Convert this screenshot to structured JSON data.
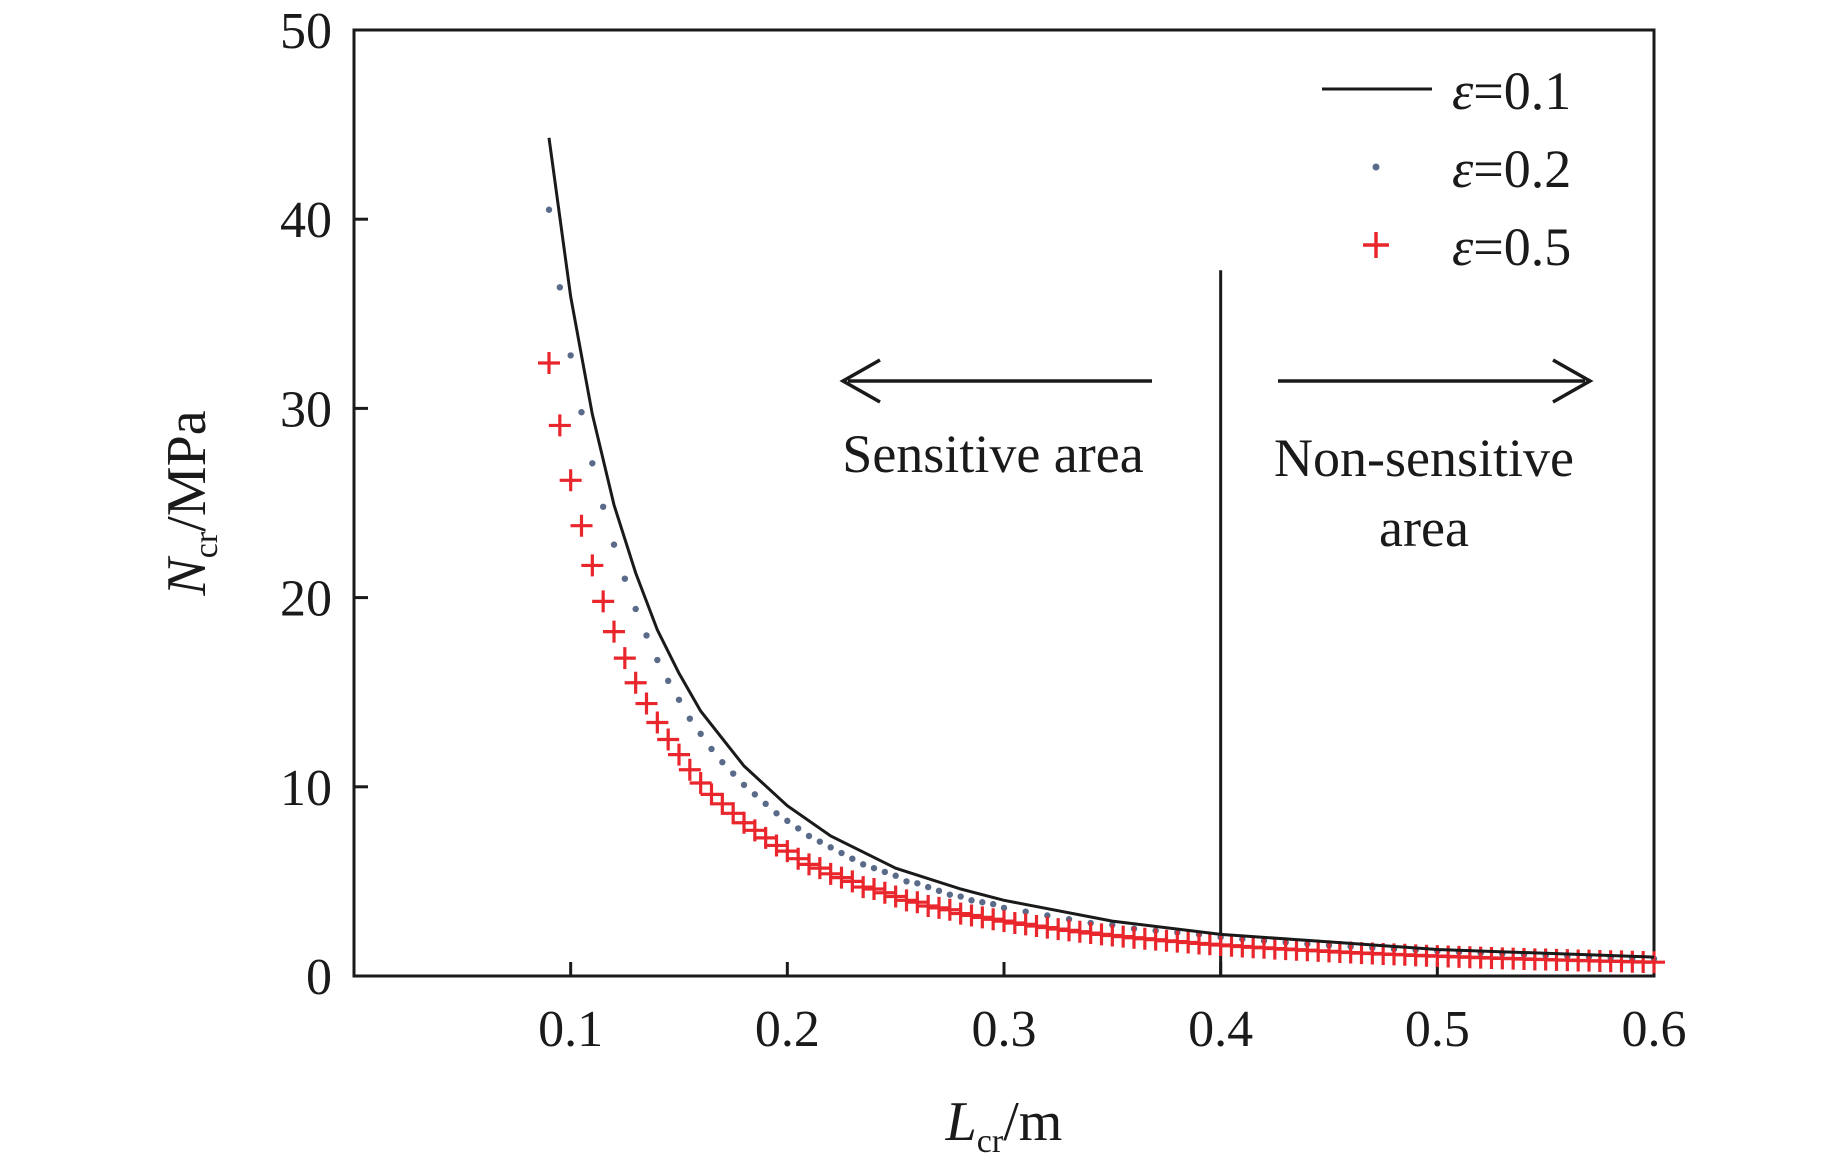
{
  "chart_data": {
    "type": "line",
    "xlabel": {
      "symbol": "L",
      "subscript": "cr",
      "unit": "/m"
    },
    "ylabel": {
      "symbol": "N",
      "subscript": "cr",
      "unit": "/MPa"
    },
    "xlim": [
      0,
      0.6
    ],
    "ylim": [
      0,
      50
    ],
    "xticks": [
      "0.1",
      "0.2",
      "0.3",
      "0.4",
      "0.5",
      "0.6"
    ],
    "yticks": [
      "0",
      "10",
      "20",
      "30",
      "40",
      "50"
    ],
    "grid": false,
    "legend_position": "top-right",
    "series": [
      {
        "name": "ε=0.1",
        "symbol": "ε",
        "value_label": "=0.1",
        "style": "line",
        "color": "#1a1a1a",
        "x": [
          0.09,
          0.1,
          0.11,
          0.12,
          0.13,
          0.14,
          0.15,
          0.16,
          0.18,
          0.2,
          0.22,
          0.25,
          0.28,
          0.3,
          0.35,
          0.4,
          0.45,
          0.5,
          0.55,
          0.6
        ],
        "y": [
          44.3,
          35.9,
          29.7,
          24.9,
          21.3,
          18.3,
          16.0,
          14.0,
          11.1,
          9.0,
          7.4,
          5.7,
          4.6,
          4.0,
          2.9,
          2.2,
          1.8,
          1.4,
          1.2,
          1.0
        ]
      },
      {
        "name": "ε=0.2",
        "symbol": "ε",
        "value_label": "=0.2",
        "style": "dots",
        "color": "#5a6b8a",
        "x": [
          0.09,
          0.095,
          0.1,
          0.105,
          0.11,
          0.115,
          0.12,
          0.125,
          0.13,
          0.135,
          0.14,
          0.145,
          0.15,
          0.155,
          0.16,
          0.165,
          0.17,
          0.175,
          0.18,
          0.185,
          0.19,
          0.195,
          0.2,
          0.205,
          0.21,
          0.215,
          0.22,
          0.225,
          0.23,
          0.235,
          0.24,
          0.245,
          0.25,
          0.255,
          0.26,
          0.265,
          0.27,
          0.275,
          0.28,
          0.285,
          0.29,
          0.295,
          0.3,
          0.31,
          0.32,
          0.33,
          0.34,
          0.35,
          0.36,
          0.37,
          0.38,
          0.39,
          0.4,
          0.41,
          0.42,
          0.43,
          0.44,
          0.45,
          0.46,
          0.47,
          0.48,
          0.49,
          0.5,
          0.51,
          0.52,
          0.53,
          0.54,
          0.55,
          0.56,
          0.57,
          0.58,
          0.59,
          0.6
        ],
        "y": [
          40.5,
          36.4,
          32.8,
          29.8,
          27.1,
          24.8,
          22.8,
          21.0,
          19.4,
          18.0,
          16.7,
          15.6,
          14.6,
          13.6,
          12.8,
          12.0,
          11.3,
          10.7,
          10.1,
          9.6,
          9.1,
          8.6,
          8.2,
          7.8,
          7.4,
          7.1,
          6.8,
          6.5,
          6.2,
          5.9,
          5.7,
          5.5,
          5.3,
          5.0,
          4.9,
          4.7,
          4.5,
          4.3,
          4.2,
          4.0,
          3.9,
          3.8,
          3.6,
          3.4,
          3.2,
          3.0,
          2.8,
          2.7,
          2.5,
          2.4,
          2.3,
          2.2,
          2.05,
          1.95,
          1.86,
          1.77,
          1.69,
          1.62,
          1.55,
          1.48,
          1.42,
          1.37,
          1.31,
          1.26,
          1.21,
          1.17,
          1.13,
          1.08,
          1.05,
          1.01,
          0.97,
          0.94,
          0.91
        ]
      },
      {
        "name": "ε=0.5",
        "symbol": "ε",
        "value_label": "=0.5",
        "style": "plus",
        "color": "#e8262c",
        "x": [
          0.09,
          0.095,
          0.1,
          0.105,
          0.11,
          0.115,
          0.12,
          0.125,
          0.13,
          0.135,
          0.14,
          0.145,
          0.15,
          0.155,
          0.16,
          0.165,
          0.17,
          0.175,
          0.18,
          0.185,
          0.19,
          0.195,
          0.2,
          0.205,
          0.21,
          0.215,
          0.22,
          0.225,
          0.23,
          0.235,
          0.24,
          0.245,
          0.25,
          0.255,
          0.26,
          0.265,
          0.27,
          0.275,
          0.28,
          0.285,
          0.29,
          0.295,
          0.3,
          0.305,
          0.31,
          0.315,
          0.32,
          0.325,
          0.33,
          0.335,
          0.34,
          0.345,
          0.35,
          0.355,
          0.36,
          0.365,
          0.37,
          0.375,
          0.38,
          0.385,
          0.39,
          0.395,
          0.4,
          0.405,
          0.41,
          0.415,
          0.42,
          0.425,
          0.43,
          0.435,
          0.44,
          0.445,
          0.45,
          0.455,
          0.46,
          0.465,
          0.47,
          0.475,
          0.48,
          0.485,
          0.49,
          0.495,
          0.5,
          0.505,
          0.51,
          0.515,
          0.52,
          0.525,
          0.53,
          0.535,
          0.54,
          0.545,
          0.55,
          0.555,
          0.56,
          0.565,
          0.57,
          0.575,
          0.58,
          0.585,
          0.59,
          0.595,
          0.6
        ],
        "y": [
          32.4,
          29.1,
          26.2,
          23.8,
          21.7,
          19.8,
          18.2,
          16.8,
          15.5,
          14.4,
          13.4,
          12.5,
          11.7,
          10.9,
          10.2,
          9.6,
          9.1,
          8.6,
          8.1,
          7.7,
          7.3,
          6.9,
          6.6,
          6.2,
          5.9,
          5.7,
          5.4,
          5.2,
          5.0,
          4.7,
          4.6,
          4.4,
          4.2,
          4.0,
          3.9,
          3.7,
          3.6,
          3.5,
          3.3,
          3.2,
          3.1,
          3.0,
          2.9,
          2.8,
          2.73,
          2.64,
          2.56,
          2.48,
          2.41,
          2.34,
          2.27,
          2.2,
          2.14,
          2.08,
          2.02,
          1.97,
          1.92,
          1.86,
          1.82,
          1.77,
          1.72,
          1.68,
          1.64,
          1.6,
          1.56,
          1.52,
          1.49,
          1.45,
          1.42,
          1.39,
          1.36,
          1.33,
          1.3,
          1.27,
          1.24,
          1.21,
          1.19,
          1.16,
          1.14,
          1.12,
          1.09,
          1.07,
          1.05,
          1.03,
          1.01,
          0.99,
          0.97,
          0.95,
          0.93,
          0.92,
          0.9,
          0.88,
          0.87,
          0.85,
          0.84,
          0.82,
          0.81,
          0.79,
          0.78,
          0.77,
          0.75,
          0.74,
          0.73
        ]
      }
    ],
    "annotations": {
      "divider_x": 0.4,
      "divider_y_top": 37.3,
      "sensitive_label": "Sensitive area",
      "nonsensitive_line1": "Non-sensitive",
      "nonsensitive_line2": "area"
    }
  }
}
